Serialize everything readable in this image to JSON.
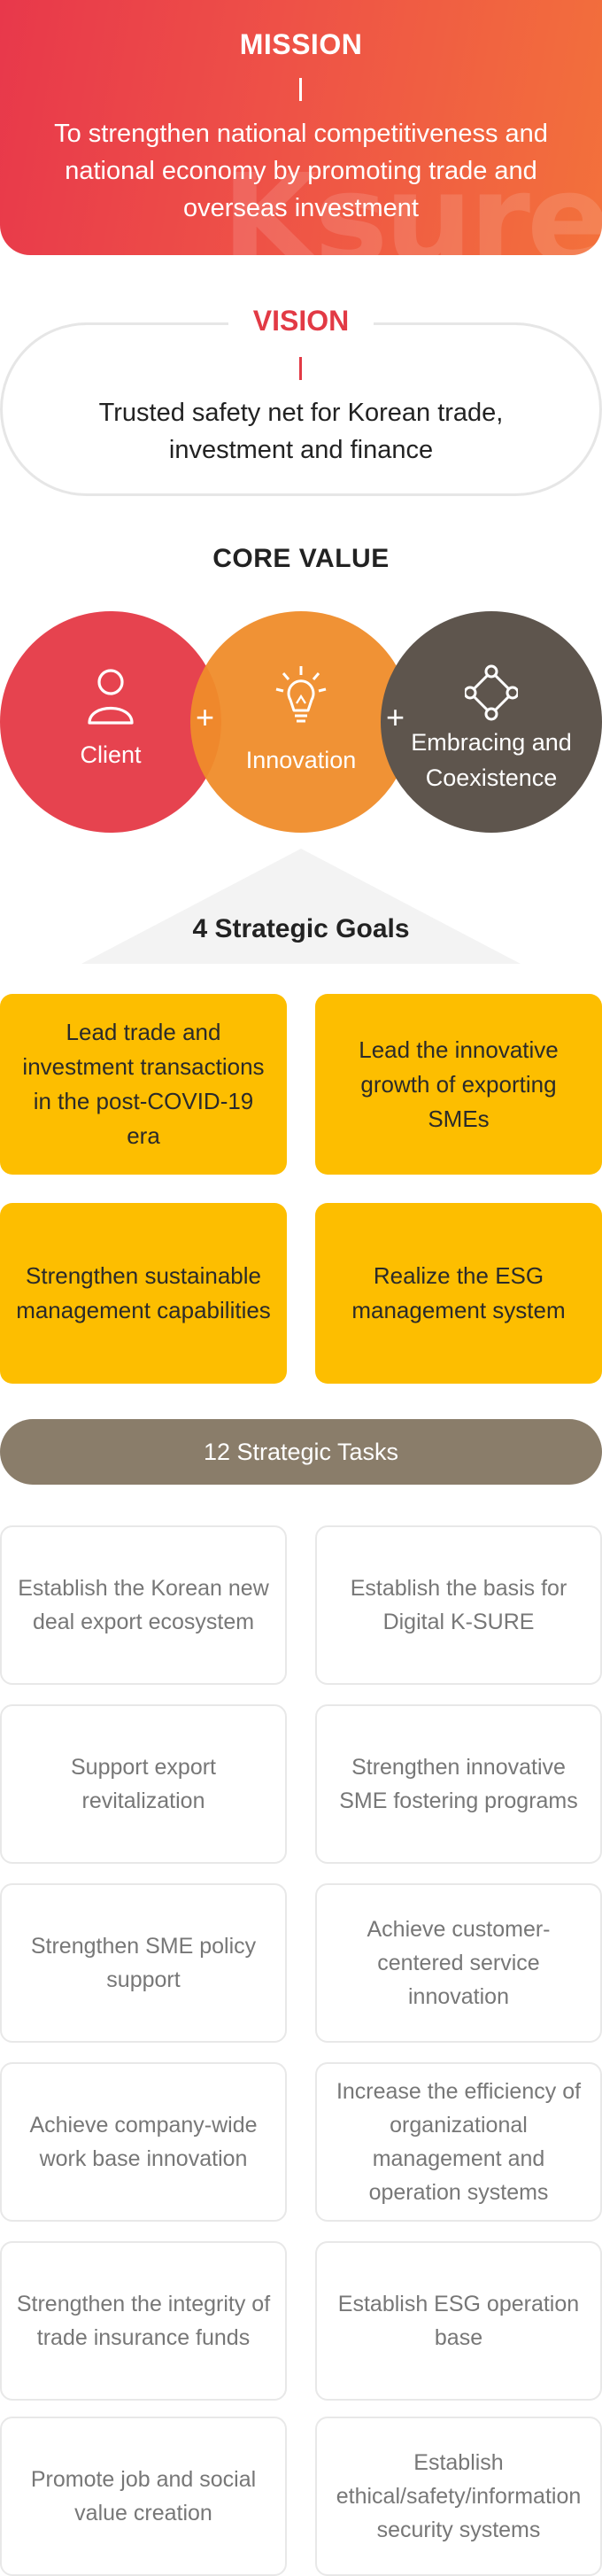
{
  "mission": {
    "title": "MISSION",
    "text": "To strengthen national competitiveness and national economy by promoting trade and overseas investment",
    "watermark": "Ksure"
  },
  "vision": {
    "title": "VISION",
    "text": "Trusted safety net for Korean trade, investment and finance"
  },
  "core_value": {
    "title": "CORE VALUE",
    "plus": "+",
    "items": [
      {
        "label": "Client",
        "icon": "person-icon",
        "color": "#e6434f"
      },
      {
        "label": "Innovation",
        "icon": "lightbulb-icon",
        "color": "#ef8c2a"
      },
      {
        "label": "Embracing and Coexistence",
        "icon": "network-diamond-icon",
        "color": "#5e554d"
      }
    ]
  },
  "goals": {
    "title": "4 Strategic Goals",
    "color": "#fdbe00",
    "items": [
      "Lead trade and investment transactions in the post-COVID-19 era",
      "Lead the innovative growth of exporting SMEs",
      "Strengthen sustainable management capabilities",
      "Realize the ESG management system"
    ]
  },
  "tasks": {
    "title": "12 Strategic Tasks",
    "color": "#8a7d6a",
    "items": [
      "Establish the Korean new deal export ecosystem",
      "Establish the basis for Digital K-SURE",
      "Support export revitalization",
      "Strengthen innovative SME fostering programs",
      "Strengthen SME policy support",
      "Achieve customer-centered service innovation",
      "Achieve company-wide work base innovation",
      "Increase the efficiency of organizational management and operation systems",
      "Strengthen the integrity of trade insurance funds",
      "Establish ESG operation base",
      "Promote job and social value creation",
      "Establish ethical/safety/information security systems"
    ]
  }
}
